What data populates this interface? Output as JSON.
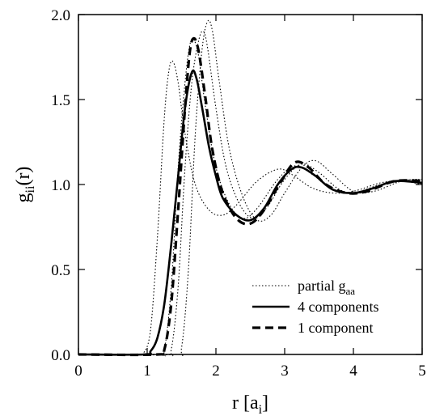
{
  "chart_data": {
    "type": "line",
    "xlabel": "r [a",
    "xlabel_sub": "i",
    "xlabel_close": "]",
    "ylabel": "g",
    "ylabel_sub": "ii",
    "ylabel_close": "(r)",
    "xlim": [
      0,
      5
    ],
    "ylim": [
      0,
      2.0
    ],
    "xticks": [
      0,
      1,
      2,
      3,
      4,
      5
    ],
    "xtick_labels": [
      "0",
      "1",
      "2",
      "3",
      "4",
      "5"
    ],
    "yticks": [
      0,
      0.5,
      1.0,
      1.5,
      2.0
    ],
    "ytick_labels": [
      "0.0",
      "0.5",
      "1.0",
      "1.5",
      "2.0"
    ],
    "grid": false,
    "legend_position": "bottom-right",
    "legend": [
      {
        "label": "partial g",
        "sub": "aa",
        "style": "dotted"
      },
      {
        "label": "4 components",
        "sub": "",
        "style": "solid"
      },
      {
        "label": "1 component",
        "sub": "",
        "style": "dashed"
      }
    ],
    "series": [
      {
        "style": "dotted",
        "points": [
          [
            0,
            0
          ],
          [
            0.85,
            0
          ],
          [
            0.95,
            0.01
          ],
          [
            1.05,
            0.15
          ],
          [
            1.15,
            0.7
          ],
          [
            1.25,
            1.4
          ],
          [
            1.32,
            1.68
          ],
          [
            1.38,
            1.72
          ],
          [
            1.45,
            1.6
          ],
          [
            1.55,
            1.3
          ],
          [
            1.7,
            1.0
          ],
          [
            1.9,
            0.85
          ],
          [
            2.1,
            0.82
          ],
          [
            2.3,
            0.88
          ],
          [
            2.6,
            1.02
          ],
          [
            2.9,
            1.09
          ],
          [
            3.1,
            1.06
          ],
          [
            3.4,
            0.98
          ],
          [
            3.7,
            0.95
          ],
          [
            4.0,
            0.96
          ],
          [
            4.4,
            1.01
          ],
          [
            4.7,
            1.02
          ],
          [
            5.0,
            1.0
          ]
        ]
      },
      {
        "style": "dotted",
        "points": [
          [
            0,
            0
          ],
          [
            1.15,
            0
          ],
          [
            1.25,
            0.03
          ],
          [
            1.35,
            0.4
          ],
          [
            1.45,
            1.1
          ],
          [
            1.55,
            1.6
          ],
          [
            1.62,
            1.82
          ],
          [
            1.68,
            1.85
          ],
          [
            1.75,
            1.75
          ],
          [
            1.85,
            1.45
          ],
          [
            2.0,
            1.1
          ],
          [
            2.2,
            0.88
          ],
          [
            2.4,
            0.8
          ],
          [
            2.6,
            0.86
          ],
          [
            2.9,
            1.03
          ],
          [
            3.15,
            1.11
          ],
          [
            3.4,
            1.06
          ],
          [
            3.7,
            0.97
          ],
          [
            4.0,
            0.95
          ],
          [
            4.4,
            1.0
          ],
          [
            4.8,
            1.02
          ],
          [
            5.0,
            1.01
          ]
        ]
      },
      {
        "style": "dotted",
        "points": [
          [
            0,
            0
          ],
          [
            1.25,
            0
          ],
          [
            1.35,
            0.03
          ],
          [
            1.45,
            0.4
          ],
          [
            1.55,
            1.1
          ],
          [
            1.65,
            1.6
          ],
          [
            1.75,
            1.85
          ],
          [
            1.82,
            1.9
          ],
          [
            1.88,
            1.8
          ],
          [
            2.0,
            1.45
          ],
          [
            2.15,
            1.1
          ],
          [
            2.35,
            0.88
          ],
          [
            2.55,
            0.8
          ],
          [
            2.75,
            0.87
          ],
          [
            3.0,
            1.03
          ],
          [
            3.25,
            1.12
          ],
          [
            3.5,
            1.07
          ],
          [
            3.8,
            0.97
          ],
          [
            4.1,
            0.95
          ],
          [
            4.5,
            1.01
          ],
          [
            4.9,
            1.03
          ],
          [
            5.0,
            1.02
          ]
        ]
      },
      {
        "style": "dotted",
        "points": [
          [
            0,
            0
          ],
          [
            1.4,
            0
          ],
          [
            1.5,
            0.04
          ],
          [
            1.6,
            0.5
          ],
          [
            1.7,
            1.3
          ],
          [
            1.8,
            1.8
          ],
          [
            1.88,
            1.96
          ],
          [
            1.95,
            1.9
          ],
          [
            2.05,
            1.6
          ],
          [
            2.2,
            1.2
          ],
          [
            2.4,
            0.92
          ],
          [
            2.6,
            0.79
          ],
          [
            2.8,
            0.82
          ],
          [
            3.0,
            0.95
          ],
          [
            3.25,
            1.1
          ],
          [
            3.45,
            1.14
          ],
          [
            3.7,
            1.06
          ],
          [
            4.0,
            0.96
          ],
          [
            4.3,
            0.96
          ],
          [
            4.7,
            1.02
          ],
          [
            5.0,
            1.03
          ]
        ]
      },
      {
        "style": "solid",
        "points": [
          [
            0,
            0
          ],
          [
            0.95,
            0
          ],
          [
            1.05,
            0.02
          ],
          [
            1.15,
            0.1
          ],
          [
            1.25,
            0.3
          ],
          [
            1.35,
            0.65
          ],
          [
            1.45,
            1.05
          ],
          [
            1.55,
            1.45
          ],
          [
            1.65,
            1.66
          ],
          [
            1.72,
            1.62
          ],
          [
            1.8,
            1.45
          ],
          [
            1.9,
            1.22
          ],
          [
            2.0,
            1.05
          ],
          [
            2.1,
            0.92
          ],
          [
            2.3,
            0.82
          ],
          [
            2.5,
            0.79
          ],
          [
            2.7,
            0.86
          ],
          [
            2.9,
            1.0
          ],
          [
            3.1,
            1.09
          ],
          [
            3.25,
            1.1
          ],
          [
            3.45,
            1.05
          ],
          [
            3.7,
            0.97
          ],
          [
            4.0,
            0.95
          ],
          [
            4.3,
            0.98
          ],
          [
            4.6,
            1.02
          ],
          [
            5.0,
            1.01
          ]
        ]
      },
      {
        "style": "dashed",
        "points": [
          [
            0,
            0
          ],
          [
            1.15,
            0
          ],
          [
            1.25,
            0.03
          ],
          [
            1.35,
            0.3
          ],
          [
            1.45,
            0.85
          ],
          [
            1.55,
            1.45
          ],
          [
            1.62,
            1.78
          ],
          [
            1.68,
            1.86
          ],
          [
            1.75,
            1.78
          ],
          [
            1.85,
            1.5
          ],
          [
            1.95,
            1.2
          ],
          [
            2.1,
            0.95
          ],
          [
            2.3,
            0.8
          ],
          [
            2.5,
            0.77
          ],
          [
            2.7,
            0.85
          ],
          [
            2.95,
            1.02
          ],
          [
            3.15,
            1.13
          ],
          [
            3.35,
            1.1
          ],
          [
            3.6,
            1.0
          ],
          [
            3.9,
            0.95
          ],
          [
            4.2,
            0.96
          ],
          [
            4.6,
            1.02
          ],
          [
            5.0,
            1.02
          ]
        ]
      }
    ]
  }
}
